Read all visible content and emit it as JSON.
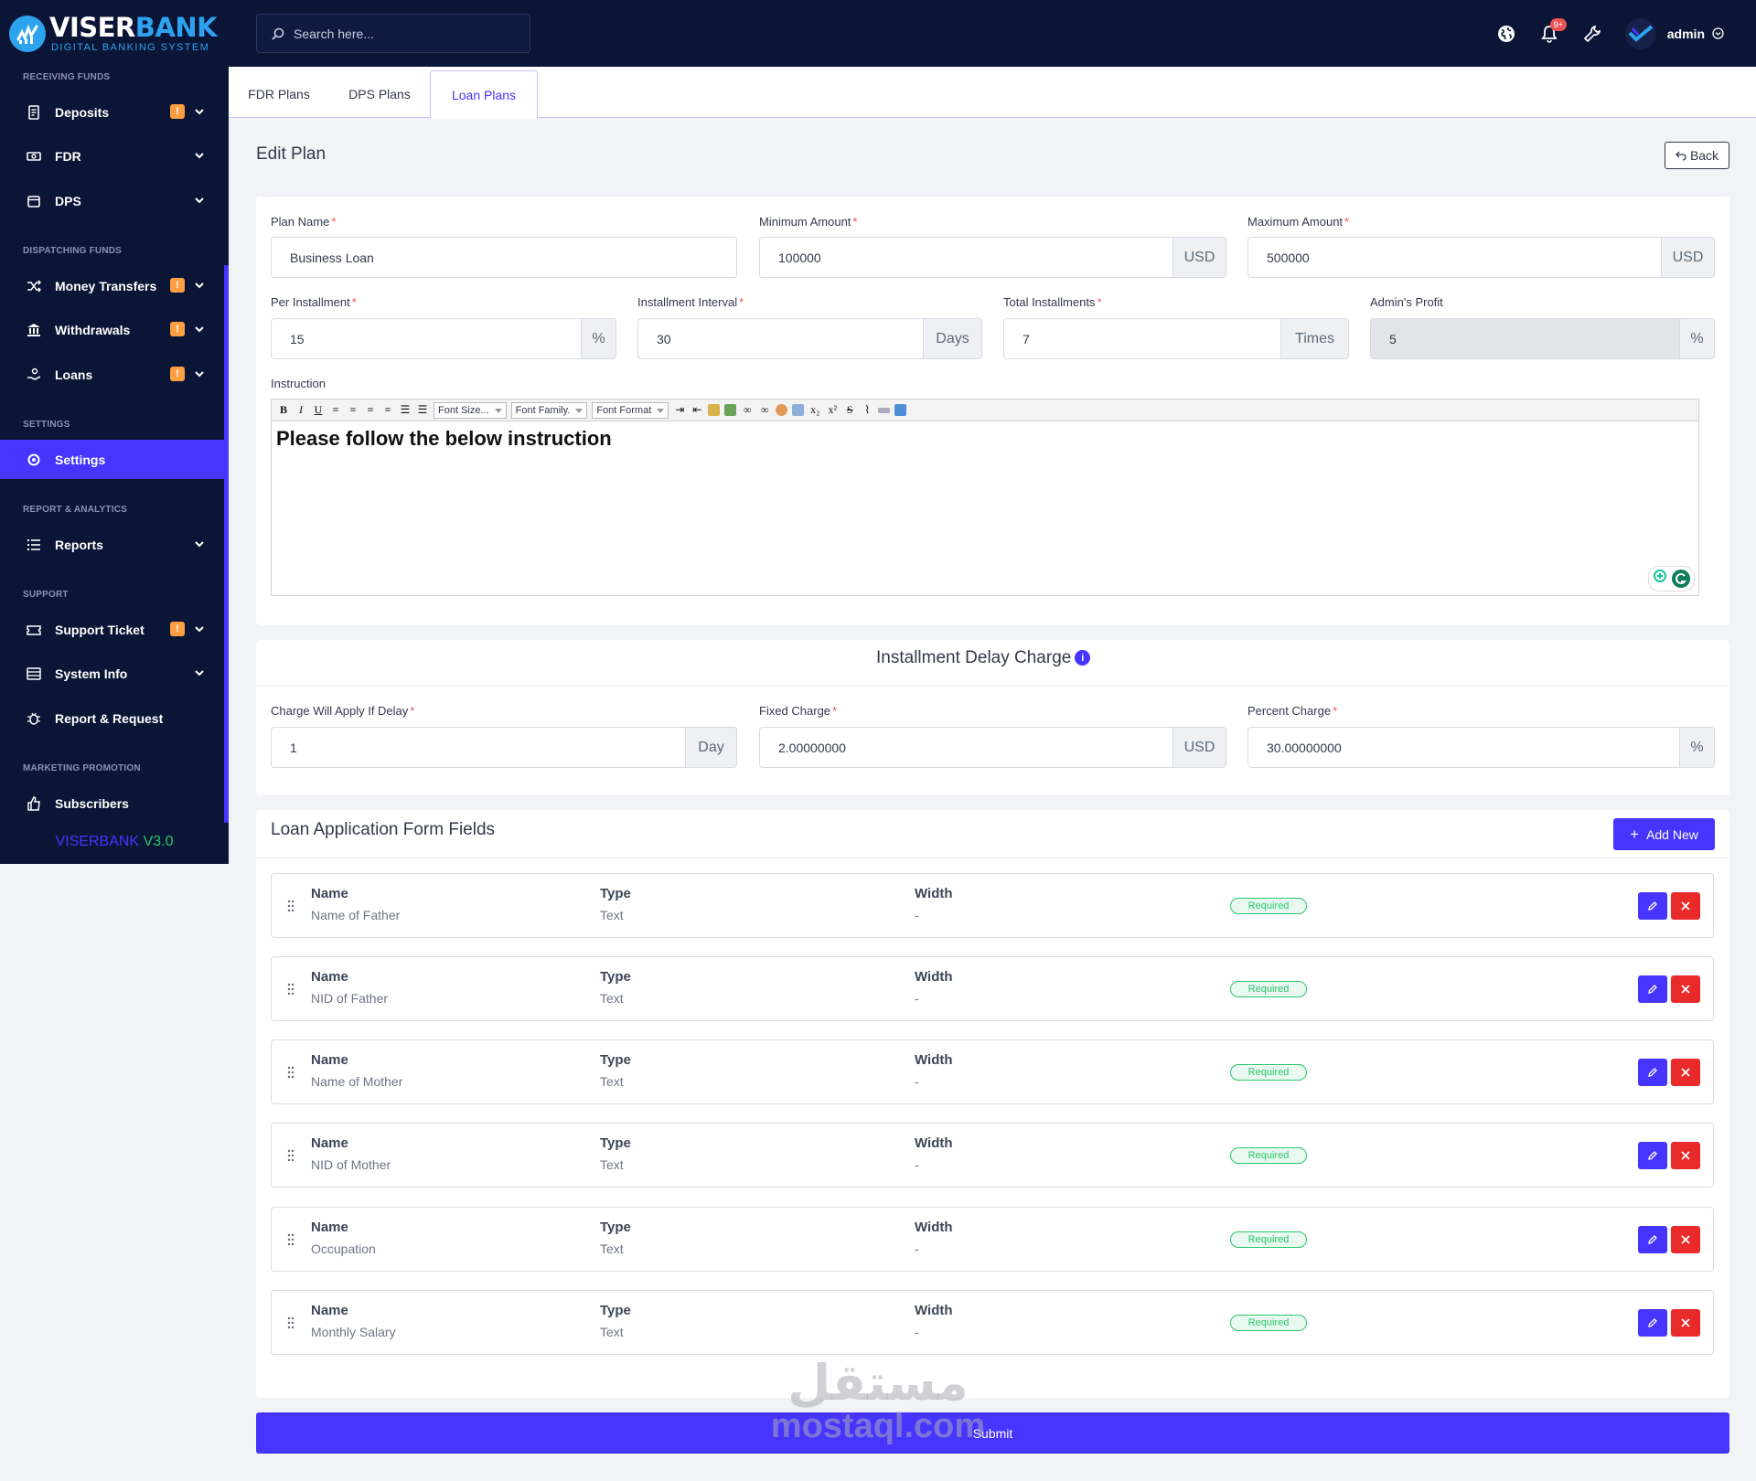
{
  "brand": {
    "name_a": "VISER",
    "name_b": "BANK",
    "tagline": "DIGITAL BANKING SYSTEM",
    "version_name": "VISERBANK",
    "version_num": "V3.0"
  },
  "sidebar": {
    "sections": [
      {
        "label": "RECEIVING FUNDS"
      },
      {
        "label": "DISPATCHING FUNDS"
      },
      {
        "label": "SETTINGS"
      },
      {
        "label": "REPORT & ANALYTICS"
      },
      {
        "label": "SUPPORT"
      },
      {
        "label": "MARKETING PROMOTION"
      }
    ],
    "items": [
      {
        "label": "Deposits",
        "badge": "!"
      },
      {
        "label": "FDR"
      },
      {
        "label": "DPS"
      },
      {
        "label": "Money Transfers",
        "badge": "!"
      },
      {
        "label": "Withdrawals",
        "badge": "!"
      },
      {
        "label": "Loans",
        "badge": "!"
      },
      {
        "label": "Settings"
      },
      {
        "label": "Reports"
      },
      {
        "label": "Support Ticket",
        "badge": "!"
      },
      {
        "label": "System Info"
      },
      {
        "label": "Report & Request"
      },
      {
        "label": "Subscribers"
      }
    ]
  },
  "topbar": {
    "search_placeholder": "Search here...",
    "notification_count": "9+",
    "username": "admin"
  },
  "tabs": [
    {
      "label": "FDR Plans"
    },
    {
      "label": "DPS Plans"
    },
    {
      "label": "Loan Plans"
    }
  ],
  "page": {
    "title": "Edit Plan",
    "back_label": "Back"
  },
  "plan": {
    "plan_name": {
      "label": "Plan Name",
      "value": "Business Loan"
    },
    "min_amount": {
      "label": "Minimum Amount",
      "value": "100000",
      "addon": "USD"
    },
    "max_amount": {
      "label": "Maximum Amount",
      "value": "500000",
      "addon": "USD"
    },
    "per_installment": {
      "label": "Per Installment",
      "value": "15",
      "addon": "%"
    },
    "interval": {
      "label": "Installment Interval",
      "value": "30",
      "addon": "Days"
    },
    "total": {
      "label": "Total Installments",
      "value": "7",
      "addon": "Times"
    },
    "admin_profit": {
      "label": "Admin's Profit",
      "value": "5",
      "addon": "%"
    },
    "instruction": {
      "label": "Instruction",
      "toolbar_font_size": "Font Size...",
      "toolbar_font_family": "Font Family.",
      "toolbar_font_format": "Font Format",
      "content": "Please follow the below instruction"
    }
  },
  "delay": {
    "title": "Installment Delay Charge",
    "apply_if_delay": {
      "label": "Charge Will Apply If Delay",
      "value": "1",
      "addon": "Day"
    },
    "fixed_charge": {
      "label": "Fixed Charge",
      "value": "2.00000000",
      "addon": "USD"
    },
    "percent_charge": {
      "label": "Percent Charge",
      "value": "30.00000000",
      "addon": "%"
    }
  },
  "form_fields": {
    "title": "Loan Application Form Fields",
    "add_label": "Add New",
    "col_name": "Name",
    "col_type": "Type",
    "col_width": "Width",
    "rows": [
      {
        "name": "Name of Father",
        "type": "Text",
        "width": "-",
        "status": "Required"
      },
      {
        "name": "NID of Father",
        "type": "Text",
        "width": "-",
        "status": "Required"
      },
      {
        "name": "Name of Mother",
        "type": "Text",
        "width": "-",
        "status": "Required"
      },
      {
        "name": "NID of Mother",
        "type": "Text",
        "width": "-",
        "status": "Required"
      },
      {
        "name": "Occupation",
        "type": "Text",
        "width": "-",
        "status": "Required"
      },
      {
        "name": "Monthly Salary",
        "type": "Text",
        "width": "-",
        "status": "Required"
      }
    ]
  },
  "submit_label": "Submit",
  "watermark": {
    "arabic": "مستقل",
    "latin": "mostaql.com"
  },
  "colors": {
    "primary": "#4634ff",
    "sidebar_bg": "#0b1536",
    "danger": "#ea2a2a",
    "success": "#28c76f",
    "warning": "#ff9f43"
  }
}
